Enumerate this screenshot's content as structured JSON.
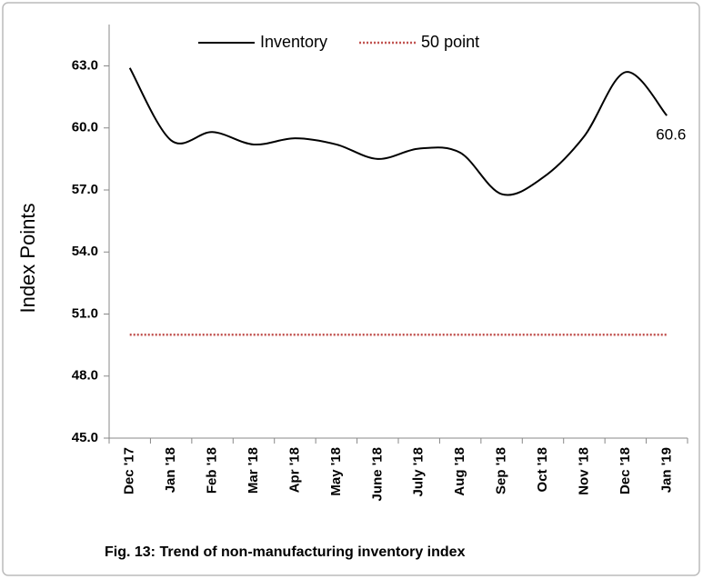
{
  "chart_data": {
    "type": "line",
    "caption": "Fig. 13: Trend of non-manufacturing inventory index",
    "y_label": "Index Points",
    "categories": [
      "Dec '17",
      "Jan '18",
      "Feb '18",
      "Mar '18",
      "Apr '18",
      "May '18",
      "June '18",
      "July '18",
      "Aug '18",
      "Sep '18",
      "Oct '18",
      "Nov '18",
      "Dec '18",
      "Jan '19"
    ],
    "series": [
      {
        "name": "Inventory",
        "color": "#000000",
        "values": [
          62.9,
          59.4,
          59.8,
          59.2,
          59.5,
          59.2,
          58.5,
          59.0,
          58.8,
          56.8,
          57.6,
          59.6,
          62.7,
          60.6
        ]
      },
      {
        "name": "50 point",
        "color": "#c0504d",
        "dotted": true,
        "values": [
          50,
          50,
          50,
          50,
          50,
          50,
          50,
          50,
          50,
          50,
          50,
          50,
          50,
          50
        ]
      }
    ],
    "ylim": [
      45,
      65
    ],
    "yticks": [
      {
        "value": 45,
        "label": "45.0"
      },
      {
        "value": 48,
        "label": "48.0"
      },
      {
        "value": 51,
        "label": "51.0"
      },
      {
        "value": 54,
        "label": "54.0"
      },
      {
        "value": 57,
        "label": "57.0"
      },
      {
        "value": 60,
        "label": "60.0"
      },
      {
        "value": 63,
        "label": "63.0"
      }
    ],
    "legend": "top",
    "grid": false
  }
}
